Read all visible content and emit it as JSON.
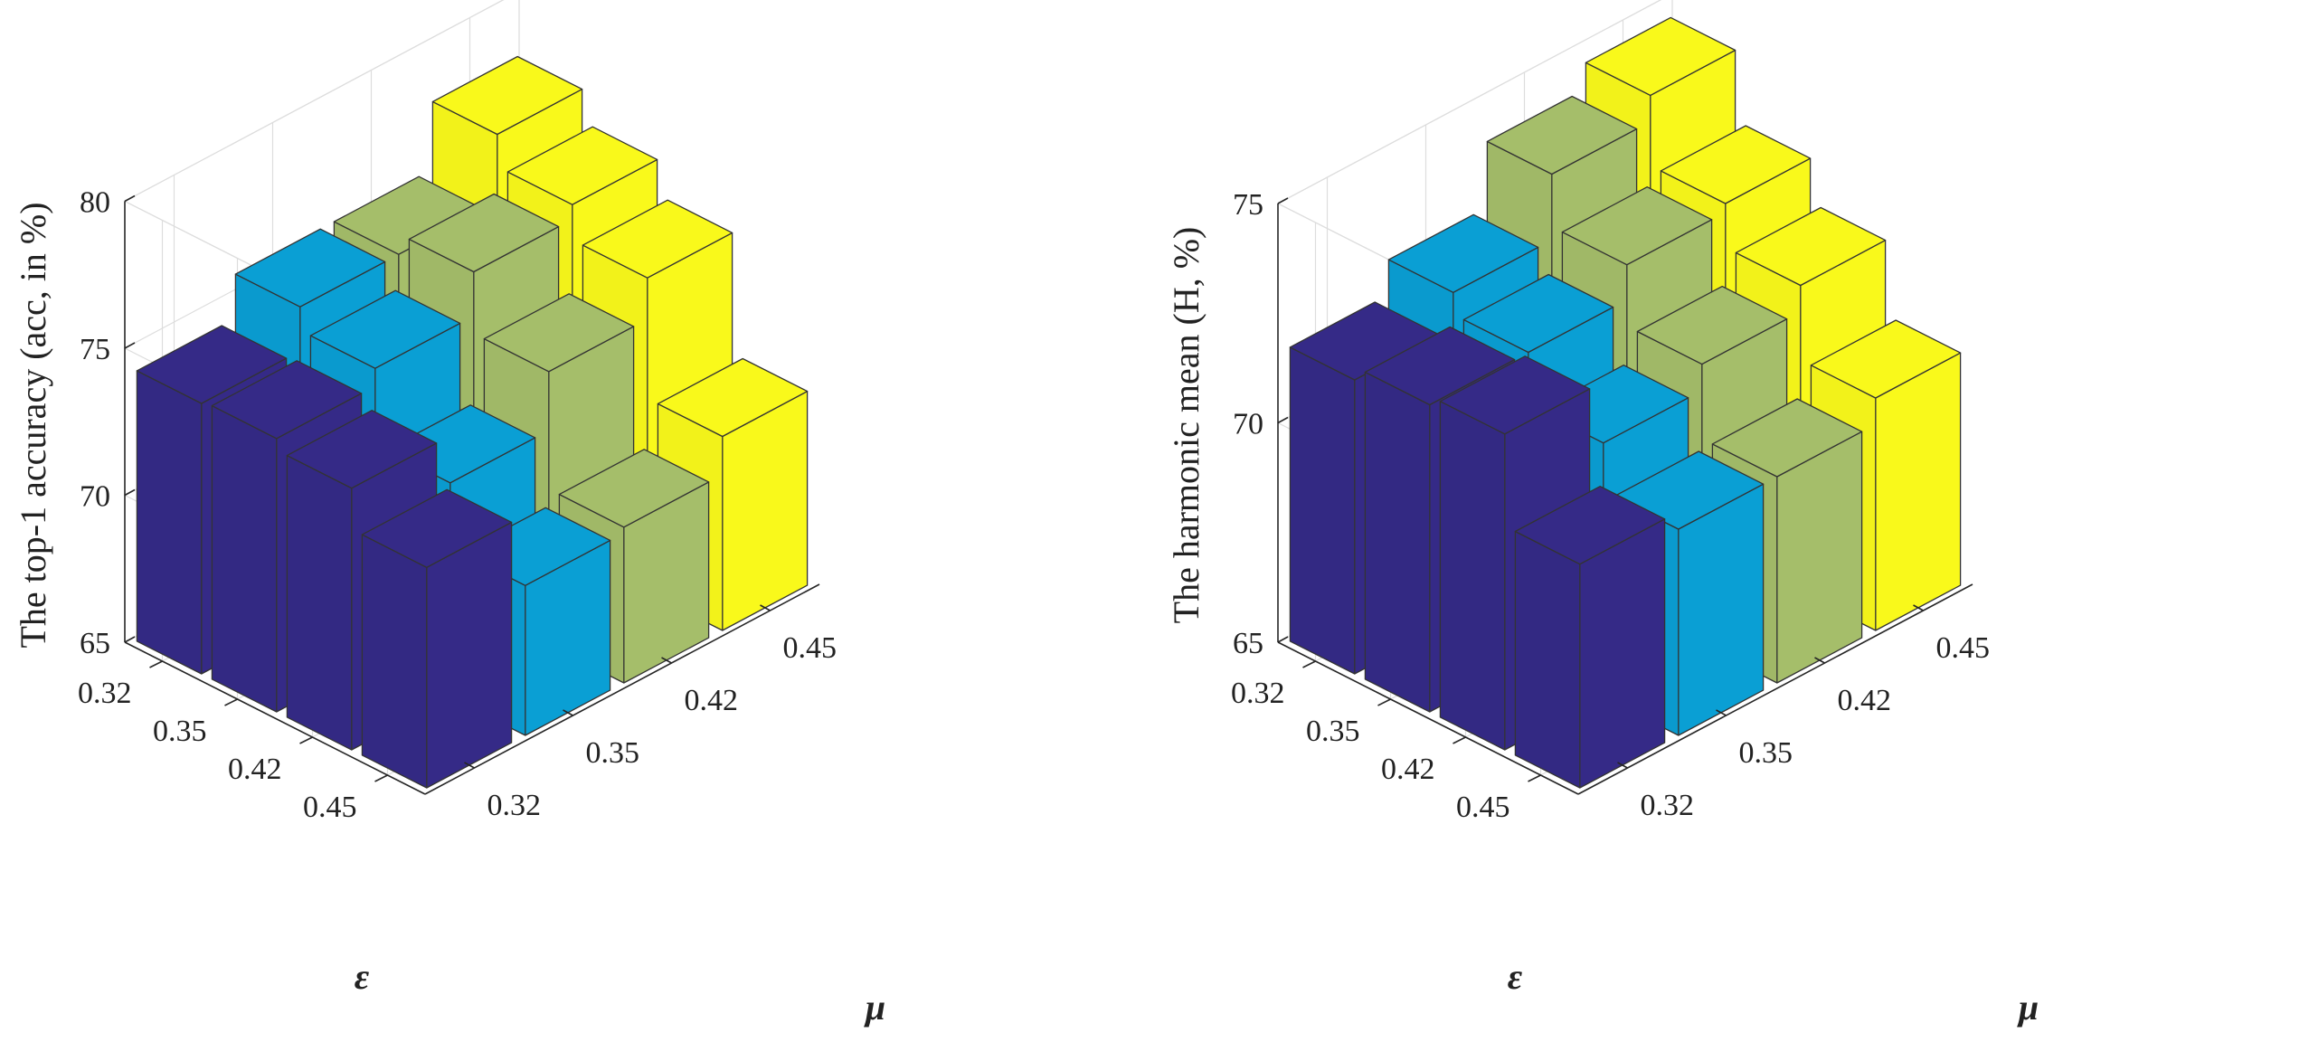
{
  "chart_data": [
    {
      "type": "bar3d",
      "title": "",
      "zlabel": "The top-1 accuracy (acc, in %)",
      "ylabel": "ε",
      "xlabel": "μ",
      "epsilon_ticks": [
        "0.32",
        "0.35",
        "0.42",
        "0.45"
      ],
      "mu_ticks": [
        "0.32",
        "0.35",
        "0.42",
        "0.45"
      ],
      "zlim": [
        65,
        80
      ],
      "zticks": [
        "65",
        "70",
        "75",
        "80"
      ],
      "series_colors": [
        "#352A87",
        "#0A9FD4",
        "#A5BE6A",
        "#F9F91B"
      ],
      "values": [
        [
          74.2,
          75.7,
          75.7,
          78.0
        ],
        [
          74.3,
          74.9,
          76.4,
          76.9
        ],
        [
          73.9,
          72.3,
          74.3,
          75.7
        ],
        [
          72.5,
          70.1,
          70.3,
          71.6
        ]
      ]
    },
    {
      "type": "bar3d",
      "title": "",
      "zlabel": "The harmonic mean (H, %)",
      "ylabel": "ε",
      "xlabel": "μ",
      "epsilon_ticks": [
        "0.32",
        "0.35",
        "0.42",
        "0.45"
      ],
      "mu_ticks": [
        "0.32",
        "0.35",
        "0.42",
        "0.45"
      ],
      "zlim": [
        65,
        75
      ],
      "zticks": [
        "65",
        "70",
        "75"
      ],
      "series_colors": [
        "#352A87",
        "#0A9FD4",
        "#A5BE6A",
        "#F9F91B"
      ],
      "values": [
        [
          71.7,
          72.5,
          74.0,
          74.6
        ],
        [
          72.0,
          72.0,
          72.8,
          73.0
        ],
        [
          72.2,
          70.8,
          71.4,
          72.0
        ],
        [
          70.1,
          69.7,
          69.7,
          70.3
        ]
      ]
    }
  ]
}
